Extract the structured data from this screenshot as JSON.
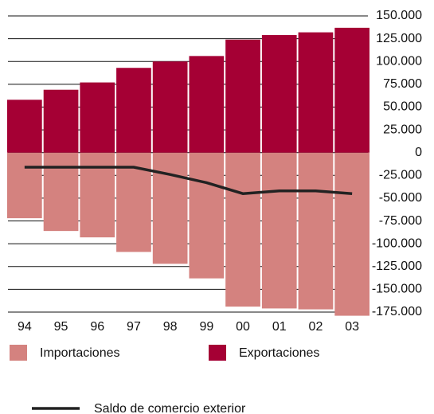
{
  "chart_data": {
    "type": "bar",
    "categories": [
      "94",
      "95",
      "96",
      "97",
      "98",
      "99",
      "00",
      "01",
      "02",
      "03"
    ],
    "series": [
      {
        "name": "Importaciones",
        "color": "#d4827f",
        "values": [
          -72000,
          -86000,
          -93000,
          -109000,
          -122000,
          -138000,
          -169000,
          -171000,
          -172000,
          -179000
        ]
      },
      {
        "name": "Exportaciones",
        "color": "#a50034",
        "values": [
          58000,
          69000,
          77000,
          93000,
          100000,
          106000,
          124000,
          129000,
          132000,
          137000
        ]
      },
      {
        "name": "Saldo de comercio exterior",
        "color": "#222222",
        "type": "line",
        "values": [
          -16000,
          -16000,
          -16000,
          -16000,
          -24000,
          -33000,
          -45000,
          -42000,
          -42000,
          -45000
        ]
      }
    ],
    "ylim": [
      -175000,
      150000
    ],
    "yticks": [
      {
        "value": 150000,
        "label": "150.000"
      },
      {
        "value": 125000,
        "label": "125.000"
      },
      {
        "value": 100000,
        "label": "100.000"
      },
      {
        "value": 75000,
        "label": "75.000"
      },
      {
        "value": 50000,
        "label": "50.000"
      },
      {
        "value": 25000,
        "label": "25.000"
      },
      0,
      {
        "value": -25000,
        "label": "-25.000"
      },
      {
        "value": -50000,
        "label": "-50.000"
      },
      {
        "value": -75000,
        "label": "-75.000"
      },
      {
        "value": -100000,
        "label": "-100.000"
      },
      {
        "value": -125000,
        "label": "-125.000"
      },
      {
        "value": -150000,
        "label": "-150.000"
      },
      {
        "value": -175000,
        "label": "-175.000"
      }
    ],
    "grid": true
  }
}
